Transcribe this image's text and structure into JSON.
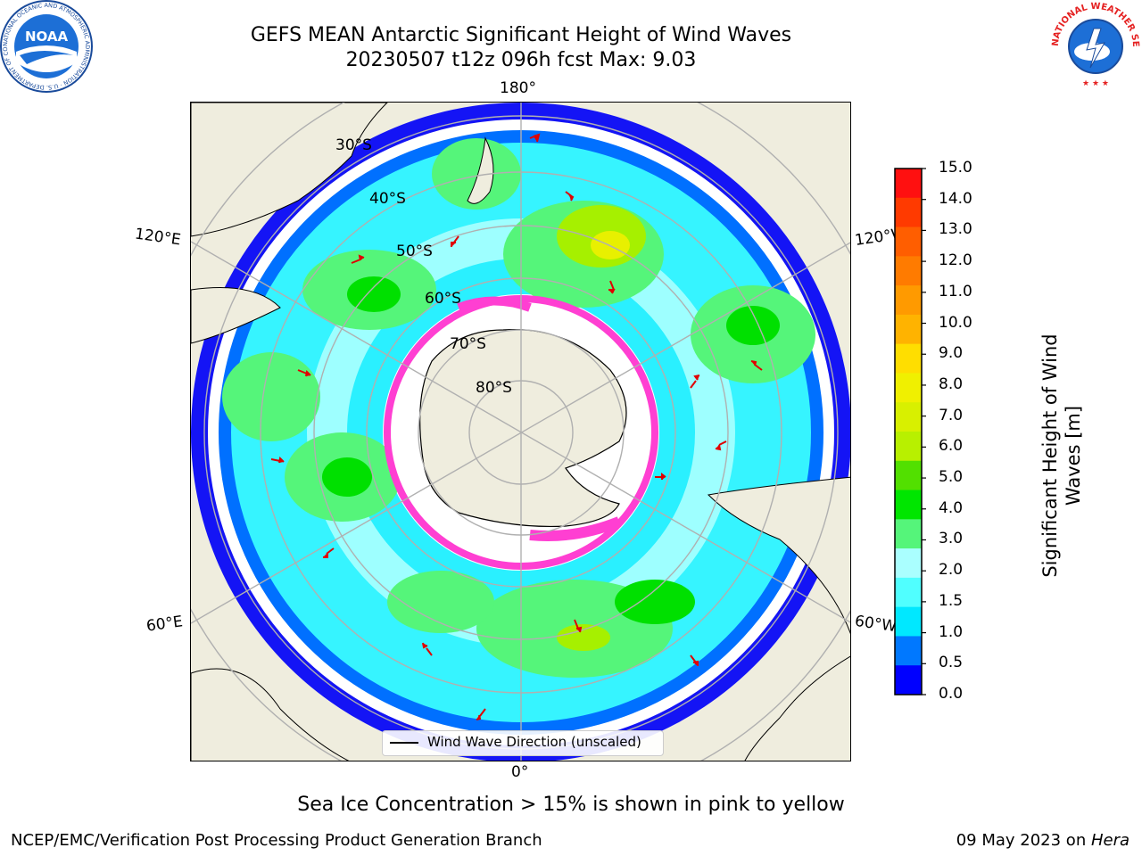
{
  "title": {
    "line1": "GEFS MEAN Antarctic Significant Height of Wind Waves",
    "line2": "20230507 t12z 096h fcst   Max: 9.03"
  },
  "map": {
    "longitude_labels": {
      "top": "180°",
      "bottom": "0°",
      "left_upper": "120°E",
      "left_lower": "60°E",
      "right_upper": "120°W",
      "right_lower": "60°W"
    },
    "latitude_labels": [
      "30°S",
      "40°S",
      "50°S",
      "60°S",
      "70°S",
      "80°S"
    ],
    "legend": {
      "label": "Wind Wave Direction (unscaled)"
    }
  },
  "colorbar": {
    "title": "Significant Height of Wind Waves [m]",
    "ticks": [
      "15.0",
      "14.0",
      "13.0",
      "12.0",
      "11.0",
      "10.0",
      "9.0",
      "8.0",
      "7.0",
      "6.0",
      "5.0",
      "4.0",
      "3.0",
      "2.0",
      "1.5",
      "1.0",
      "0.5",
      "0.0"
    ],
    "colors": [
      "#ff1010",
      "#ff3a00",
      "#ff5e00",
      "#ff7b00",
      "#ff9a00",
      "#ffb300",
      "#ffde00",
      "#f0f000",
      "#d8f000",
      "#b8f000",
      "#52e000",
      "#00e600",
      "#55f57a",
      "#aaffff",
      "#50ffff",
      "#00e8ff",
      "#0078ff",
      "#0000ff"
    ]
  },
  "footer": {
    "note": "Sea Ice Concentration > 15% is shown in pink to yellow",
    "credit": "NCEP/EMC/Verification Post Processing Product Generation Branch",
    "date_prefix": "09 May 2023 on ",
    "machine": "Hera"
  },
  "logos": {
    "noaa_text": "NOAA",
    "noaa_ring": "NATIONAL OCEANIC AND ATMOSPHERIC ADMINISTRATION · U.S. DEPARTMENT OF COMMERCE ·",
    "nws_ring": "NATIONAL WEATHER SERVICE"
  }
}
